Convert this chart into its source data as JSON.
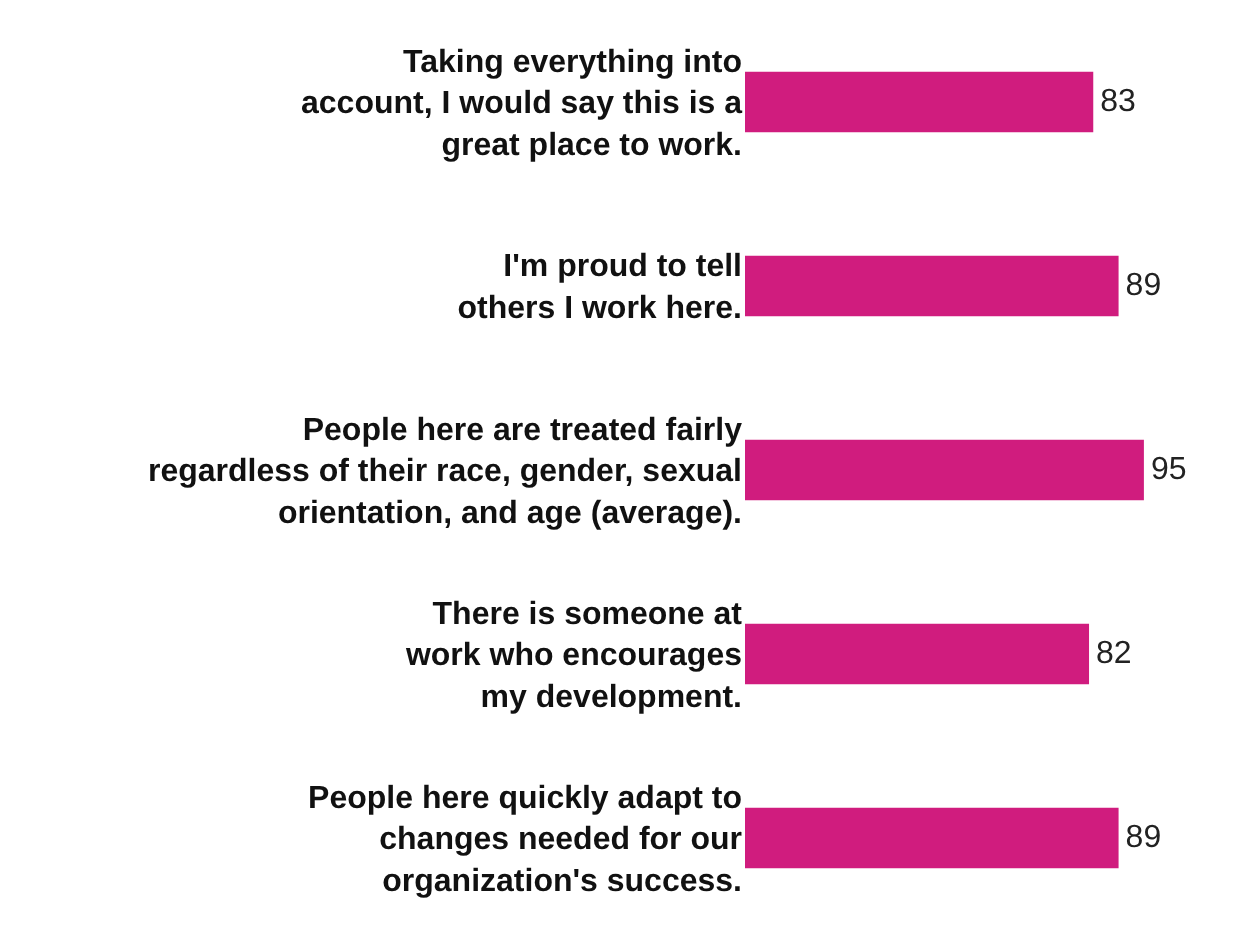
{
  "chart_data": {
    "type": "bar",
    "orientation": "horizontal",
    "categories": [
      "Taking everything into\naccount, I would say this is a\ngreat place to work.",
      "I'm proud to tell\nothers I work here.",
      "People here are treated fairly\nregardless of their race, gender, sexual\norientation, and age (average).",
      "There is someone at\nwork who encourages\nmy development.",
      "People here quickly adapt to\nchanges needed for our\norganization's success."
    ],
    "values": [
      83,
      89,
      95,
      82,
      89
    ],
    "color": "#d01c7e",
    "data_labels": true
  }
}
